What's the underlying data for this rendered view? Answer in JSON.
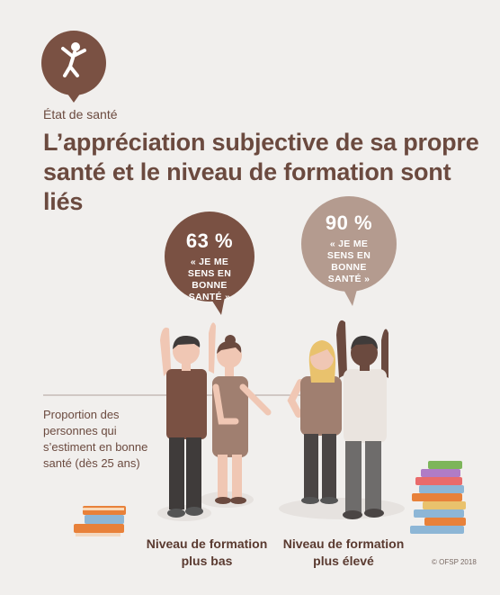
{
  "header": {
    "category": "État de santé",
    "title": "L’appréciation subjective de sa propre santé et le niveau de formation sont liés"
  },
  "icon": {
    "name": "person-jumping-icon",
    "color": "#7a5143"
  },
  "groups": [
    {
      "percent": "63 %",
      "quote": "« JE ME SENS EN BONNE SANTÉ »",
      "label": "Niveau de formation plus bas",
      "bubble_color": "#7a5143"
    },
    {
      "percent": "90 %",
      "quote": "« JE ME SENS EN BONNE SANTÉ »",
      "label": "Niveau de formation plus élevé",
      "bubble_color": "#b49b8f"
    }
  ],
  "proportion_label": "Proportion des personnes qui s’estiment en bonne santé (dès 25 ans)",
  "credit": "© OFSP 2018"
}
